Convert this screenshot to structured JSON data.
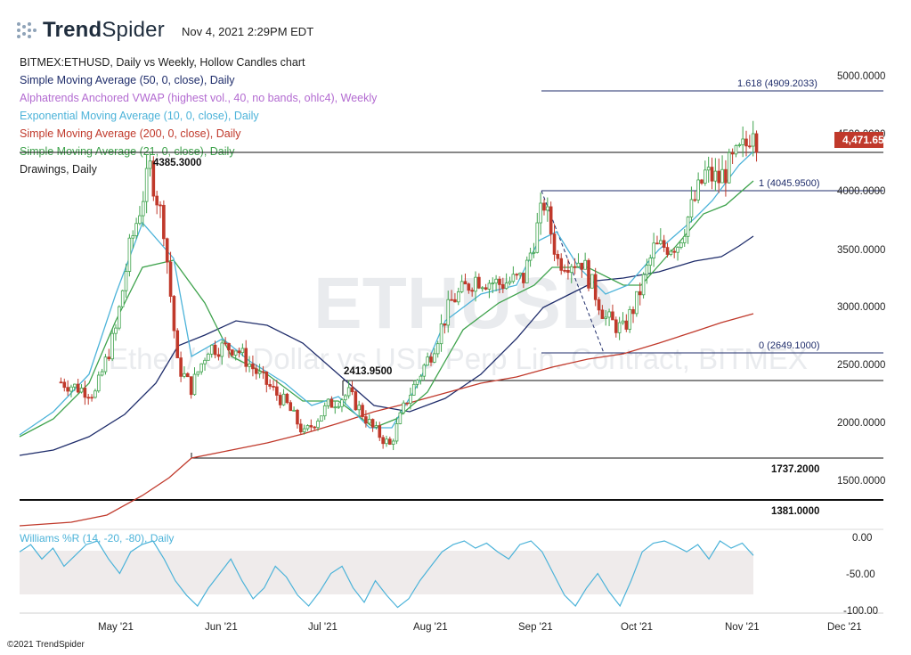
{
  "header": {
    "brand_bold": "Trend",
    "brand_light": "Spider",
    "datetime": "Nov 4, 2021 2:29PM EDT"
  },
  "legend": [
    {
      "text": "BITMEX:ETHUSD, Daily vs Weekly, Hollow Candles chart",
      "color": "#222222"
    },
    {
      "text": "Simple Moving Average (50, 0, close), Daily",
      "color": "#1f2d6b"
    },
    {
      "text": "Alphatrends Anchored VWAP (highest vol., 40, no bands, ohlc4), Weekly",
      "color": "#b36bd1"
    },
    {
      "text": "Exponential Moving Average (10, 0, close), Daily",
      "color": "#4cb3d9"
    },
    {
      "text": "Simple Moving Average (200, 0, close), Daily",
      "color": "#c0392b"
    },
    {
      "text": "Simple Moving Average (21, 0, close), Daily",
      "color": "#3fa34d"
    },
    {
      "text": "Drawings, Daily",
      "color": "#222222"
    }
  ],
  "watermark": {
    "symbol": "ETHUSD",
    "description": "Ether / US Dollar vs USD Perp Lin. Contract, BITMEX"
  },
  "price_badge": "4,471.65",
  "copyright": "©2021 TrendSpider",
  "chart_data": [
    {
      "type": "candlestick",
      "title": "BITMEX:ETHUSD, Daily vs Weekly, Hollow Candles chart",
      "x_ticks": [
        "May '21",
        "Jun '21",
        "Jul '21",
        "Aug '21",
        "Sep '21",
        "Oct '21",
        "Nov '21",
        "Dec '21"
      ],
      "y_ticks": [
        "5000.0000",
        "4500.0000",
        "4000.0000",
        "3500.0000",
        "3000.0000",
        "2500.0000",
        "2000.0000",
        "1500.0000"
      ],
      "ylim": [
        1300,
        5250
      ],
      "last_price": 4471.65,
      "colors": {
        "up": "#3fa34d",
        "down": "#c0392b",
        "sma50": "#1f2d6b",
        "ema10": "#4cb3d9",
        "sma200": "#c0392b",
        "sma21": "#3fa34d",
        "fib": "#1f2d6b"
      },
      "horizontal_levels": [
        {
          "label": "4385.3000",
          "value": 4385.3
        },
        {
          "label": "2413.9500",
          "value": 2413.95
        },
        {
          "label": "1737.2000",
          "value": 1737.2
        },
        {
          "label": "1381.0000",
          "value": 1381.0
        }
      ],
      "fibonacci": [
        {
          "label": "1.618 (4909.2033)",
          "value": 4909.2033
        },
        {
          "label": "1 (4045.9500)",
          "value": 4045.95
        },
        {
          "label": "0 (2649.1000)",
          "value": 2649.1
        }
      ],
      "close_approx": [
        {
          "date": "2021-04-15",
          "value": 2350
        },
        {
          "date": "2021-04-25",
          "value": 2250
        },
        {
          "date": "2021-05-01",
          "value": 2800
        },
        {
          "date": "2021-05-05",
          "value": 3500
        },
        {
          "date": "2021-05-11",
          "value": 4200
        },
        {
          "date": "2021-05-15",
          "value": 3700
        },
        {
          "date": "2021-05-19",
          "value": 2500
        },
        {
          "date": "2021-05-23",
          "value": 2300
        },
        {
          "date": "2021-05-28",
          "value": 2650
        },
        {
          "date": "2021-06-05",
          "value": 2650
        },
        {
          "date": "2021-06-12",
          "value": 2400
        },
        {
          "date": "2021-06-20",
          "value": 2150
        },
        {
          "date": "2021-06-25",
          "value": 1900
        },
        {
          "date": "2021-07-02",
          "value": 2150
        },
        {
          "date": "2021-07-08",
          "value": 2250
        },
        {
          "date": "2021-07-15",
          "value": 1950
        },
        {
          "date": "2021-07-20",
          "value": 1800
        },
        {
          "date": "2021-07-25",
          "value": 2200
        },
        {
          "date": "2021-08-01",
          "value": 2600
        },
        {
          "date": "2021-08-07",
          "value": 3050
        },
        {
          "date": "2021-08-14",
          "value": 3250
        },
        {
          "date": "2021-08-21",
          "value": 3200
        },
        {
          "date": "2021-08-28",
          "value": 3250
        },
        {
          "date": "2021-09-03",
          "value": 3900
        },
        {
          "date": "2021-09-07",
          "value": 3400
        },
        {
          "date": "2021-09-14",
          "value": 3400
        },
        {
          "date": "2021-09-21",
          "value": 2900
        },
        {
          "date": "2021-09-26",
          "value": 2800
        },
        {
          "date": "2021-09-30",
          "value": 3050
        },
        {
          "date": "2021-10-05",
          "value": 3500
        },
        {
          "date": "2021-10-12",
          "value": 3550
        },
        {
          "date": "2021-10-16",
          "value": 3850
        },
        {
          "date": "2021-10-20",
          "value": 4150
        },
        {
          "date": "2021-10-24",
          "value": 4100
        },
        {
          "date": "2021-10-28",
          "value": 4250
        },
        {
          "date": "2021-11-01",
          "value": 4400
        },
        {
          "date": "2021-11-03",
          "value": 4600
        },
        {
          "date": "2021-11-04",
          "value": 4471.65
        }
      ]
    },
    {
      "type": "line",
      "title": "Williams %R (14, -20, -80), Daily",
      "y_ticks": [
        "0.00",
        "-50.00",
        "-100.00"
      ],
      "ylim": [
        -100,
        0
      ],
      "band": [
        -80,
        -20
      ],
      "series": [
        {
          "values": [
            -20,
            -10,
            -30,
            -15,
            -40,
            -25,
            -10,
            -5,
            -30,
            -50,
            -20,
            -10,
            -5,
            -30,
            -60,
            -80,
            -95,
            -70,
            -50,
            -30,
            -60,
            -85,
            -70,
            -40,
            -55,
            -80,
            -95,
            -75,
            -50,
            -40,
            -70,
            -90,
            -60,
            -80,
            -97,
            -85,
            -60,
            -40,
            -20,
            -10,
            -5,
            -15,
            -8,
            -20,
            -30,
            -10,
            -5,
            -20,
            -50,
            -80,
            -95,
            -70,
            -50,
            -75,
            -95,
            -60,
            -20,
            -8,
            -5,
            -12,
            -20,
            -10,
            -30,
            -5,
            -15,
            -8,
            -25
          ]
        }
      ]
    }
  ]
}
